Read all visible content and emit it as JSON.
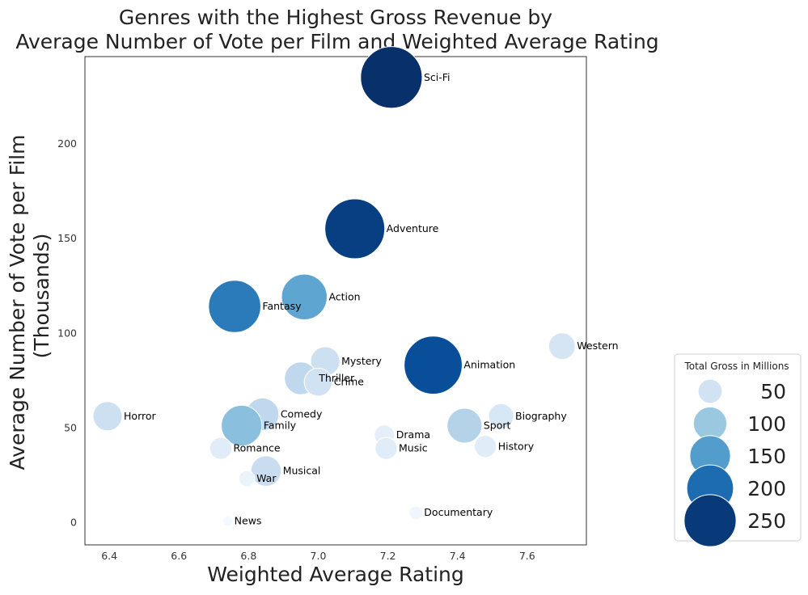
{
  "chart_data": {
    "type": "scatter",
    "title": [
      "Genres with the Highest Gross Revenue by",
      "Average Number of Vote per Film and Weighted Average Rating"
    ],
    "xlabel": "Weighted Average Rating",
    "ylabel": [
      "Average Number of Vote per Film",
      "(Thousands)"
    ],
    "xlim": [
      6.33,
      7.77
    ],
    "ylim": [
      -12,
      246
    ],
    "xticks": [
      6.4,
      6.6,
      6.8,
      7.0,
      7.2,
      7.4,
      7.6
    ],
    "xtick_labels": [
      "6.4",
      "6.6",
      "6.8",
      "7.0",
      "7.2",
      "7.4",
      "7.6"
    ],
    "yticks": [
      0,
      50,
      100,
      150,
      200
    ],
    "ytick_labels": [
      "0",
      "50",
      "100",
      "150",
      "200"
    ],
    "grid": false,
    "points": [
      {
        "label": "Sci-Fi",
        "x": 7.21,
        "y": 235,
        "gross": 260
      },
      {
        "label": "Adventure",
        "x": 7.105,
        "y": 155,
        "gross": 245
      },
      {
        "label": "Action",
        "x": 6.96,
        "y": 119,
        "gross": 140
      },
      {
        "label": "Fantasy",
        "x": 6.76,
        "y": 114,
        "gross": 185
      },
      {
        "label": "Western",
        "x": 7.7,
        "y": 93,
        "gross": 45
      },
      {
        "label": "Mystery",
        "x": 7.02,
        "y": 85,
        "gross": 55
      },
      {
        "label": "Animation",
        "x": 7.33,
        "y": 83,
        "gross": 230
      },
      {
        "label": "Thriller",
        "x": 6.95,
        "y": 76,
        "gross": 70
      },
      {
        "label": "Crime",
        "x": 7.0,
        "y": 74,
        "gross": 50
      },
      {
        "label": "Horror",
        "x": 6.395,
        "y": 56,
        "gross": 55
      },
      {
        "label": "Biography",
        "x": 7.525,
        "y": 56,
        "gross": 40
      },
      {
        "label": "Comedy",
        "x": 6.84,
        "y": 57,
        "gross": 70
      },
      {
        "label": "Family",
        "x": 6.78,
        "y": 51,
        "gross": 110
      },
      {
        "label": "Sport",
        "x": 7.42,
        "y": 51,
        "gross": 80
      },
      {
        "label": "Drama",
        "x": 7.19,
        "y": 46,
        "gross": 25
      },
      {
        "label": "History",
        "x": 7.48,
        "y": 40,
        "gross": 30
      },
      {
        "label": "Romance",
        "x": 6.72,
        "y": 39,
        "gross": 30
      },
      {
        "label": "Music",
        "x": 7.195,
        "y": 39,
        "gross": 30
      },
      {
        "label": "Musical",
        "x": 6.85,
        "y": 27,
        "gross": 60
      },
      {
        "label": "War",
        "x": 6.795,
        "y": 23,
        "gross": 15
      },
      {
        "label": "Documentary",
        "x": 7.28,
        "y": 5,
        "gross": 10
      },
      {
        "label": "News",
        "x": 6.74,
        "y": 0.5,
        "gross": 5
      }
    ],
    "legend": {
      "title": "Total Gross in Millions",
      "placement": "right",
      "entries": [
        {
          "label": "50",
          "gross": 50
        },
        {
          "label": "100",
          "gross": 100
        },
        {
          "label": "150",
          "gross": 150
        },
        {
          "label": "200",
          "gross": 200
        },
        {
          "label": "250",
          "gross": 250
        }
      ]
    },
    "colormap": [
      "#f7fbff",
      "#deebf7",
      "#c6dbef",
      "#9ecae1",
      "#6baed6",
      "#4292c6",
      "#2171b5",
      "#08519c",
      "#08306b"
    ]
  }
}
